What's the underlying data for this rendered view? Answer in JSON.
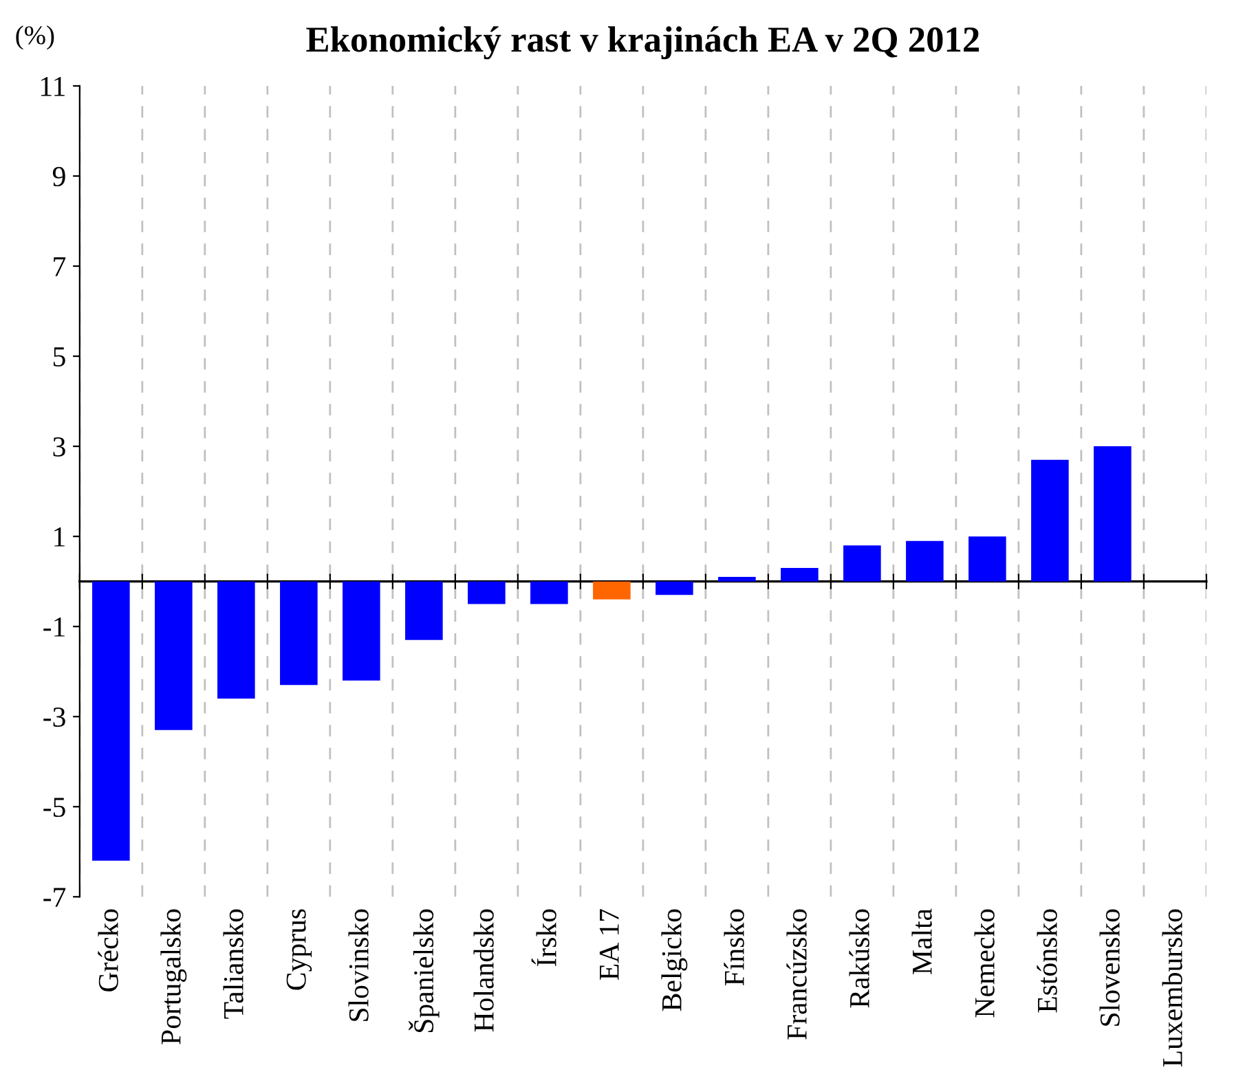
{
  "chart_data": {
    "type": "bar",
    "title": "Ekonomický rast v krajinách EA v 2Q 2012",
    "ylabel": "(%)",
    "categories": [
      "Grécko",
      "Portugalsko",
      "Taliansko",
      "Cyprus",
      "Slovinsko",
      "Španielsko",
      "Holandsko",
      "Írsko",
      "EA 17",
      "Belgicko",
      "Fínsko",
      "Francúzsko",
      "Rakúsko",
      "Malta",
      "Nemecko",
      "Estónsko",
      "Slovensko",
      "Luxembursko"
    ],
    "values": [
      -6.2,
      -3.3,
      -2.6,
      -2.3,
      -2.2,
      -1.3,
      -0.5,
      -0.5,
      -0.4,
      -0.3,
      0.1,
      0.3,
      0.8,
      0.9,
      1.0,
      2.7,
      3.0,
      null
    ],
    "colors": [
      "#0000ff",
      "#0000ff",
      "#0000ff",
      "#0000ff",
      "#0000ff",
      "#0000ff",
      "#0000ff",
      "#0000ff",
      "#ff6600",
      "#0000ff",
      "#0000ff",
      "#0000ff",
      "#0000ff",
      "#0000ff",
      "#0000ff",
      "#0000ff",
      "#0000ff",
      "#0000ff"
    ],
    "ylim": [
      -7,
      11
    ],
    "yticks": [
      -7,
      -5,
      -3,
      -1,
      1,
      3,
      5,
      7,
      9,
      11
    ],
    "grid": "x",
    "legend": false
  }
}
